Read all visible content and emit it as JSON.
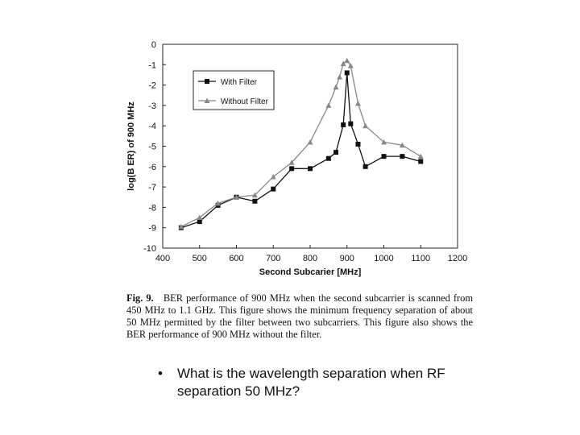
{
  "chart_data": {
    "type": "line",
    "xlabel": "Second Subcarier [MHz]",
    "ylabel": "log(B ER) of 900 MHz",
    "xlim": [
      400,
      1200
    ],
    "ylim": [
      -10,
      0
    ],
    "xticks": [
      400,
      500,
      600,
      700,
      800,
      900,
      1000,
      1100,
      1200
    ],
    "yticks": [
      0,
      -1,
      -2,
      -3,
      -4,
      -5,
      -6,
      -7,
      -8,
      -9,
      -10
    ],
    "grid": false,
    "legend_position": "top-left",
    "series": [
      {
        "name": "With Filter",
        "marker": "square",
        "color": "#111111",
        "x": [
          450,
          500,
          550,
          600,
          650,
          700,
          750,
          800,
          850,
          870,
          890,
          900,
          910,
          930,
          950,
          1000,
          1050,
          1100
        ],
        "y": [
          -9.0,
          -8.7,
          -7.9,
          -7.5,
          -7.7,
          -7.1,
          -6.1,
          -6.1,
          -5.6,
          -5.3,
          -3.95,
          -1.4,
          -3.9,
          -4.9,
          -6.0,
          -5.5,
          -5.5,
          -5.75
        ]
      },
      {
        "name": "Without Filter",
        "marker": "triangle",
        "color": "#888888",
        "x": [
          450,
          500,
          550,
          600,
          650,
          700,
          750,
          800,
          850,
          870,
          880,
          890,
          900,
          910,
          930,
          950,
          1000,
          1050,
          1100
        ],
        "y": [
          -8.95,
          -8.5,
          -7.8,
          -7.5,
          -7.4,
          -6.5,
          -5.8,
          -4.8,
          -3.0,
          -2.1,
          -1.6,
          -0.95,
          -0.8,
          -1.05,
          -2.9,
          -4.0,
          -4.8,
          -4.95,
          -5.5
        ]
      }
    ]
  },
  "caption": {
    "fig_label": "Fig. 9.",
    "text": "BER performance of 900 MHz when the second subcarrier is scanned from 450 MHz to 1.1 GHz. This figure shows the minimum frequency separation of about 50 MHz permitted by the filter between two subcarriers. This figure also shows the BER performance of 900 MHz without the filter."
  },
  "bullet": {
    "symbol": "•",
    "text": "What is the wavelength separation when RF separation 50 MHz?"
  }
}
